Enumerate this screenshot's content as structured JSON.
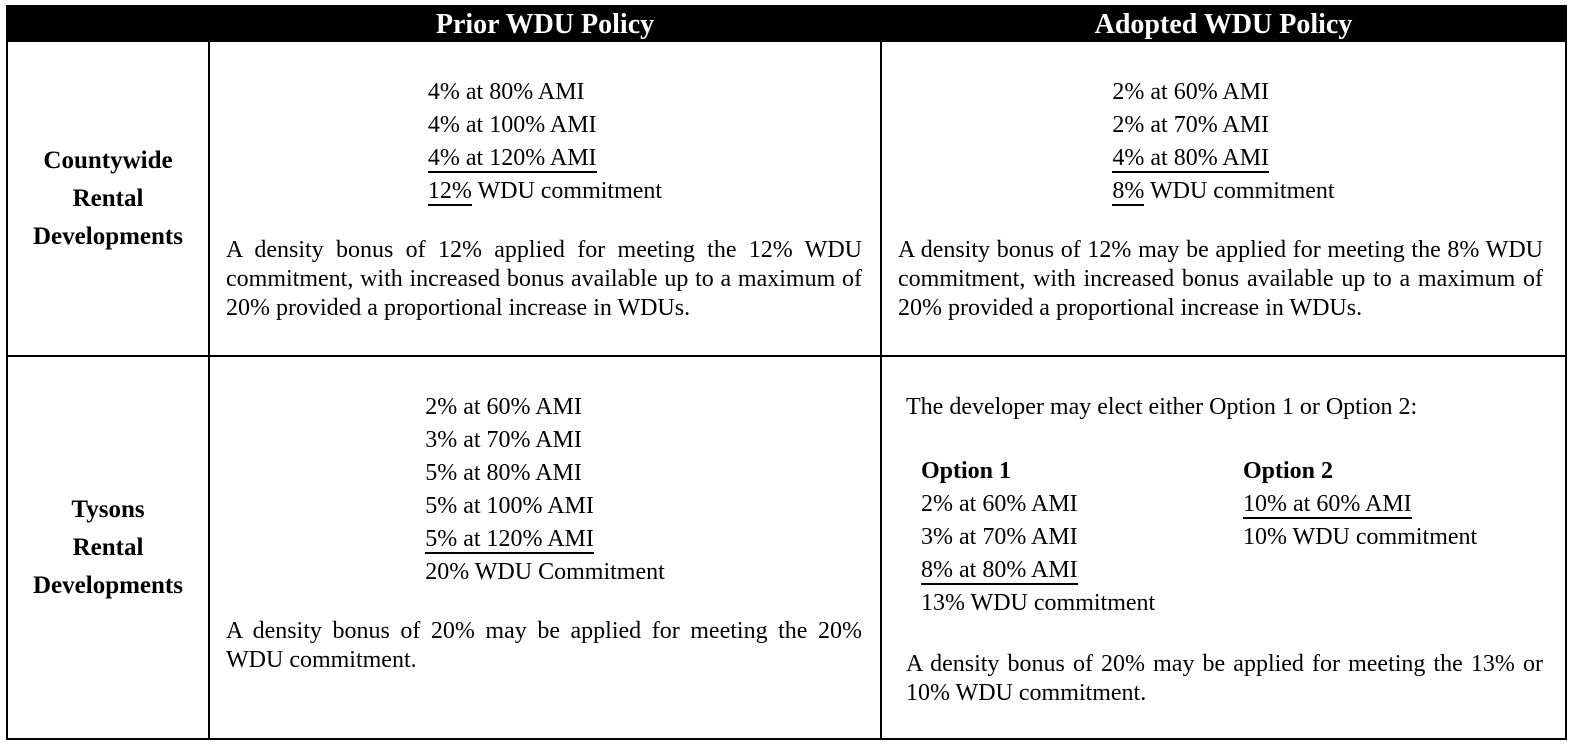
{
  "header": {
    "prior": "Prior WDU Policy",
    "adopted": "Adopted WDU Policy"
  },
  "countywide": {
    "label_lines": [
      "Countywide",
      "Rental",
      "Developments"
    ],
    "prior": {
      "lines": [
        {
          "u": "",
          "t": "4% at 80% AMI"
        },
        {
          "u": "",
          "t": "4% at 100% AMI"
        },
        {
          "u": "4% at 120% AMI",
          "t": ""
        },
        {
          "u": "12%",
          "t": " WDU commitment"
        }
      ],
      "paragraph": "A density bonus of 12% applied for meeting the 12% WDU commitment, with increased bonus available up to a maximum of 20% provided a proportional increase in WDUs."
    },
    "adopted": {
      "lines": [
        {
          "u": "",
          "t": "2% at 60% AMI"
        },
        {
          "u": "",
          "t": "2% at 70% AMI"
        },
        {
          "u": "4% at 80% AMI",
          "t": ""
        },
        {
          "u": "8%",
          "t": " WDU commitment"
        }
      ],
      "paragraph": "A density bonus of 12% may be applied for meeting the 8% WDU commitment, with increased bonus available up to a maximum of 20% provided a proportional increase in WDUs."
    }
  },
  "tysons": {
    "label_lines": [
      "Tysons",
      "Rental",
      "Developments"
    ],
    "prior": {
      "lines": [
        {
          "u": "",
          "t": "2% at 60% AMI"
        },
        {
          "u": "",
          "t": "3% at 70% AMI"
        },
        {
          "u": "",
          "t": "5% at 80% AMI"
        },
        {
          "u": "",
          "t": "5% at 100% AMI"
        },
        {
          "u": "5% at 120% AMI",
          "t": ""
        },
        {
          "u": "",
          "t": "20% WDU Commitment"
        }
      ],
      "paragraph": "A density bonus of 20% may be applied for meeting the 20% WDU commitment."
    },
    "adopted": {
      "intro": "The developer may elect either Option 1 or Option 2:",
      "option1": {
        "title": "Option 1",
        "lines": [
          {
            "u": "",
            "t": "2% at 60% AMI"
          },
          {
            "u": "",
            "t": "3% at 70% AMI"
          },
          {
            "u": "8% at 80% AMI",
            "t": ""
          },
          {
            "u": "",
            "t": "13% WDU commitment"
          }
        ]
      },
      "option2": {
        "title": "Option 2",
        "lines": [
          {
            "u": "10% at 60% AMI",
            "t": ""
          },
          {
            "u": "",
            "t": "10% WDU commitment"
          }
        ]
      },
      "paragraph": "A density bonus of 20% may be applied for meeting the 13% or 10% WDU commitment."
    }
  },
  "colors": {
    "header_bg": "#000000",
    "header_text": "#ffffff",
    "body_text": "#000000",
    "border": "#000000"
  }
}
